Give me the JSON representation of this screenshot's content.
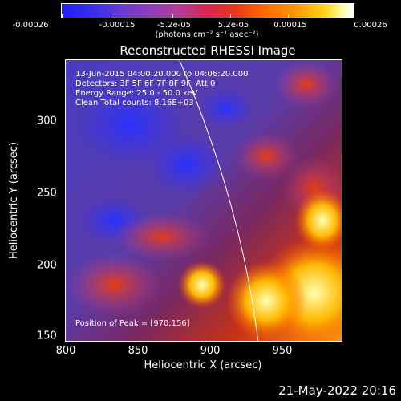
{
  "colorbar": {
    "ticks": [
      "-0.00026",
      "-0.00015",
      "-5.2e-05",
      "5.2e-05",
      "0.00015",
      "0.00026"
    ],
    "unit": "(photons cm⁻² s⁻¹ asec⁻²)"
  },
  "title": "Reconstructed RHESSI Image",
  "info": {
    "time_range": "13-Jun-2015 04:00:20.000 to 04:06:20.000",
    "detectors": "Detectors: 3F 5F 6F 7F 8F 9F, Att 0",
    "energy": "Energy Range: 25.0 - 50.0 keV",
    "clean": "Clean    Total counts: 8.16E+03",
    "peak": "Position of Peak = [970,156]"
  },
  "axes": {
    "xlabel": "Heliocentric X (arcsec)",
    "ylabel": "Heliocentric Y (arcsec)",
    "xticks": [
      "800",
      "850",
      "900",
      "950"
    ],
    "yticks": [
      "300",
      "250",
      "200",
      "150"
    ]
  },
  "datestamp": "21-May-2022 20:16"
}
